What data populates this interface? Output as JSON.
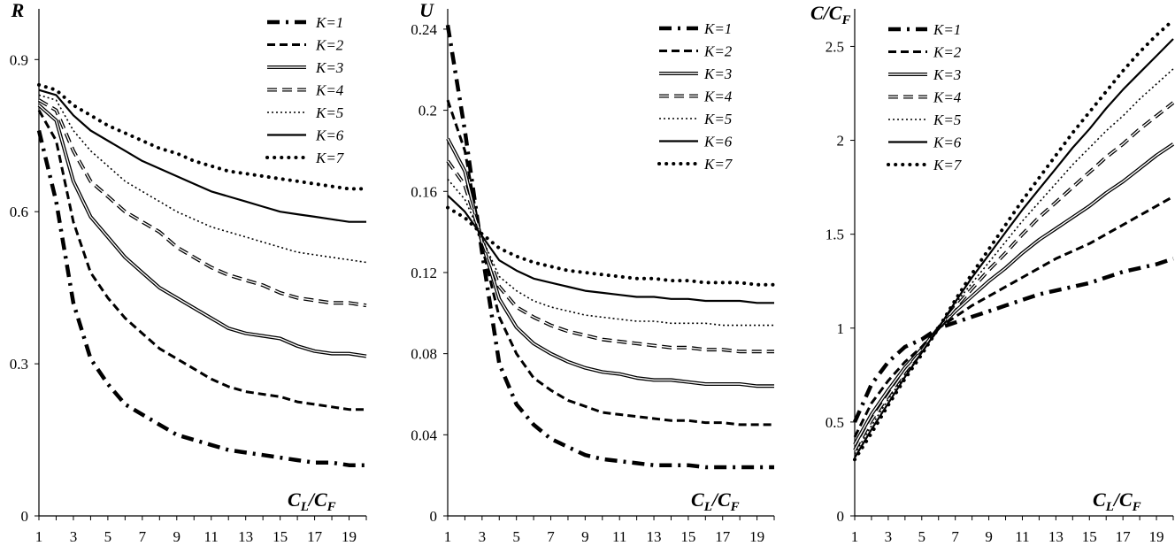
{
  "chart_data": [
    {
      "type": "line",
      "ylabel": "R",
      "xlabel": "CL/CF",
      "xlabel_main": "C",
      "xlabel_sub1": "L",
      "xlabel_sep": "/C",
      "xlabel_sub2": "F",
      "ylim": [
        0,
        1.0
      ],
      "yticks": [
        0,
        0.3,
        0.6,
        0.9
      ],
      "ytick_labels": [
        "0",
        "0.3",
        "0.6",
        "0.9"
      ],
      "x": [
        1,
        2,
        3,
        4,
        5,
        6,
        7,
        8,
        9,
        10,
        11,
        12,
        13,
        14,
        15,
        16,
        17,
        18,
        19,
        20
      ],
      "xtick_labels": [
        "1",
        "3",
        "5",
        "7",
        "9",
        "11",
        "13",
        "15",
        "17",
        "19"
      ],
      "legend_position": "top-right",
      "series": [
        {
          "name": "K=1",
          "values": [
            0.76,
            0.62,
            0.42,
            0.31,
            0.26,
            0.22,
            0.2,
            0.18,
            0.16,
            0.15,
            0.14,
            0.13,
            0.125,
            0.12,
            0.115,
            0.11,
            0.105,
            0.105,
            0.1,
            0.1
          ]
        },
        {
          "name": "K=2",
          "values": [
            0.8,
            0.74,
            0.58,
            0.48,
            0.43,
            0.39,
            0.36,
            0.33,
            0.31,
            0.29,
            0.27,
            0.255,
            0.245,
            0.24,
            0.235,
            0.225,
            0.22,
            0.215,
            0.21,
            0.21
          ]
        },
        {
          "name": "K=3",
          "values": [
            0.81,
            0.78,
            0.66,
            0.59,
            0.55,
            0.51,
            0.48,
            0.45,
            0.43,
            0.41,
            0.39,
            0.37,
            0.36,
            0.355,
            0.35,
            0.335,
            0.325,
            0.32,
            0.32,
            0.315
          ]
        },
        {
          "name": "K=4",
          "values": [
            0.82,
            0.8,
            0.72,
            0.66,
            0.63,
            0.6,
            0.58,
            0.56,
            0.53,
            0.51,
            0.49,
            0.475,
            0.465,
            0.455,
            0.44,
            0.43,
            0.425,
            0.42,
            0.42,
            0.415
          ]
        },
        {
          "name": "K=5",
          "values": [
            0.83,
            0.82,
            0.76,
            0.72,
            0.69,
            0.66,
            0.64,
            0.62,
            0.6,
            0.585,
            0.57,
            0.56,
            0.55,
            0.54,
            0.53,
            0.52,
            0.515,
            0.51,
            0.505,
            0.5
          ]
        },
        {
          "name": "K=6",
          "values": [
            0.84,
            0.83,
            0.79,
            0.76,
            0.74,
            0.72,
            0.7,
            0.685,
            0.67,
            0.655,
            0.64,
            0.63,
            0.62,
            0.61,
            0.6,
            0.595,
            0.59,
            0.585,
            0.58,
            0.58
          ]
        },
        {
          "name": "K=7",
          "values": [
            0.85,
            0.84,
            0.81,
            0.79,
            0.77,
            0.755,
            0.74,
            0.725,
            0.715,
            0.7,
            0.69,
            0.68,
            0.675,
            0.67,
            0.665,
            0.66,
            0.655,
            0.65,
            0.645,
            0.645
          ]
        }
      ]
    },
    {
      "type": "line",
      "ylabel": "U",
      "xlabel": "CL/CF",
      "xlabel_main": "C",
      "xlabel_sub1": "L",
      "xlabel_sep": "/C",
      "xlabel_sub2": "F",
      "ylim": [
        0,
        0.25
      ],
      "yticks": [
        0,
        0.04,
        0.08,
        0.12,
        0.16,
        0.2,
        0.24
      ],
      "ytick_labels": [
        "0",
        "0.04",
        "0.08",
        "0.12",
        "0.16",
        "0.2",
        "0.24"
      ],
      "x": [
        1,
        2,
        3,
        4,
        5,
        6,
        7,
        8,
        9,
        10,
        11,
        12,
        13,
        14,
        15,
        16,
        17,
        18,
        19,
        20
      ],
      "xtick_labels": [
        "1",
        "3",
        "5",
        "7",
        "9",
        "11",
        "13",
        "15",
        "17",
        "19"
      ],
      "legend_position": "top-right",
      "series": [
        {
          "name": "K=1",
          "values": [
            0.242,
            0.19,
            0.13,
            0.075,
            0.055,
            0.045,
            0.038,
            0.034,
            0.03,
            0.028,
            0.027,
            0.026,
            0.025,
            0.025,
            0.025,
            0.024,
            0.024,
            0.024,
            0.024,
            0.024
          ]
        },
        {
          "name": "K=2",
          "values": [
            0.205,
            0.18,
            0.133,
            0.098,
            0.08,
            0.068,
            0.062,
            0.057,
            0.054,
            0.051,
            0.05,
            0.049,
            0.048,
            0.047,
            0.047,
            0.046,
            0.046,
            0.045,
            0.045,
            0.045
          ]
        },
        {
          "name": "K=3",
          "values": [
            0.186,
            0.17,
            0.135,
            0.107,
            0.093,
            0.085,
            0.08,
            0.076,
            0.073,
            0.071,
            0.07,
            0.068,
            0.067,
            0.067,
            0.066,
            0.065,
            0.065,
            0.065,
            0.064,
            0.064
          ]
        },
        {
          "name": "K=4",
          "values": [
            0.175,
            0.163,
            0.136,
            0.113,
            0.103,
            0.098,
            0.094,
            0.091,
            0.089,
            0.087,
            0.086,
            0.085,
            0.084,
            0.083,
            0.083,
            0.082,
            0.082,
            0.081,
            0.081,
            0.081
          ]
        },
        {
          "name": "K=5",
          "values": [
            0.166,
            0.156,
            0.137,
            0.118,
            0.111,
            0.106,
            0.103,
            0.101,
            0.099,
            0.098,
            0.097,
            0.096,
            0.096,
            0.095,
            0.095,
            0.095,
            0.094,
            0.094,
            0.094,
            0.094
          ]
        },
        {
          "name": "K=6",
          "values": [
            0.158,
            0.15,
            0.138,
            0.126,
            0.121,
            0.117,
            0.115,
            0.113,
            0.111,
            0.11,
            0.109,
            0.108,
            0.108,
            0.107,
            0.107,
            0.106,
            0.106,
            0.106,
            0.105,
            0.105
          ]
        },
        {
          "name": "K=7",
          "values": [
            0.152,
            0.147,
            0.139,
            0.132,
            0.128,
            0.125,
            0.123,
            0.121,
            0.12,
            0.119,
            0.118,
            0.117,
            0.117,
            0.116,
            0.116,
            0.115,
            0.115,
            0.115,
            0.114,
            0.114
          ]
        }
      ]
    },
    {
      "type": "line",
      "ylabel": "C/CF",
      "ylabel_main": "C/C",
      "ylabel_sub": "F",
      "xlabel": "CL/CF",
      "xlabel_main": "C",
      "xlabel_sub1": "L",
      "xlabel_sep": "/C",
      "xlabel_sub2": "F",
      "ylim": [
        0,
        2.7
      ],
      "yticks": [
        0,
        0.5,
        1,
        1.5,
        2,
        2.5
      ],
      "ytick_labels": [
        "0",
        "0.5",
        "1",
        "1.5",
        "2",
        "2.5"
      ],
      "x": [
        1,
        2,
        3,
        4,
        5,
        6,
        7,
        8,
        9,
        10,
        11,
        12,
        13,
        14,
        15,
        16,
        17,
        18,
        19,
        20
      ],
      "xtick_labels": [
        "1",
        "3",
        "5",
        "7",
        "9",
        "11",
        "13",
        "15",
        "17",
        "19"
      ],
      "legend_position": "top-left",
      "series": [
        {
          "name": "K=1",
          "values": [
            0.5,
            0.7,
            0.82,
            0.9,
            0.94,
            1.0,
            1.03,
            1.06,
            1.09,
            1.12,
            1.15,
            1.18,
            1.2,
            1.22,
            1.24,
            1.27,
            1.3,
            1.32,
            1.34,
            1.37
          ]
        },
        {
          "name": "K=2",
          "values": [
            0.42,
            0.6,
            0.72,
            0.82,
            0.9,
            1.0,
            1.06,
            1.12,
            1.17,
            1.22,
            1.27,
            1.32,
            1.37,
            1.41,
            1.45,
            1.5,
            1.55,
            1.6,
            1.65,
            1.7
          ]
        },
        {
          "name": "K=3",
          "values": [
            0.38,
            0.54,
            0.67,
            0.79,
            0.89,
            1.0,
            1.09,
            1.17,
            1.25,
            1.32,
            1.4,
            1.47,
            1.53,
            1.59,
            1.65,
            1.72,
            1.78,
            1.85,
            1.92,
            1.98
          ]
        },
        {
          "name": "K=4",
          "values": [
            0.35,
            0.51,
            0.64,
            0.77,
            0.88,
            1.0,
            1.11,
            1.21,
            1.31,
            1.4,
            1.5,
            1.59,
            1.67,
            1.75,
            1.83,
            1.91,
            1.98,
            2.06,
            2.13,
            2.2
          ]
        },
        {
          "name": "K=5",
          "values": [
            0.33,
            0.48,
            0.62,
            0.75,
            0.87,
            1.0,
            1.13,
            1.24,
            1.35,
            1.46,
            1.57,
            1.67,
            1.77,
            1.87,
            1.96,
            2.05,
            2.13,
            2.22,
            2.3,
            2.38
          ]
        },
        {
          "name": "K=6",
          "values": [
            0.31,
            0.46,
            0.6,
            0.74,
            0.87,
            1.0,
            1.14,
            1.27,
            1.39,
            1.51,
            1.63,
            1.74,
            1.85,
            1.96,
            2.06,
            2.17,
            2.27,
            2.36,
            2.45,
            2.54
          ]
        },
        {
          "name": "K=7",
          "values": [
            0.3,
            0.44,
            0.59,
            0.73,
            0.86,
            1.0,
            1.15,
            1.29,
            1.42,
            1.55,
            1.68,
            1.8,
            1.92,
            2.04,
            2.15,
            2.26,
            2.37,
            2.47,
            2.56,
            2.64
          ]
        }
      ]
    }
  ]
}
